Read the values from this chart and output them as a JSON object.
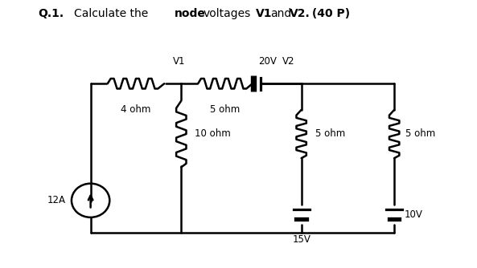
{
  "title_plain": "Q.1. Calculate the ",
  "title_bold1": "node",
  "title_after_bold1": " voltages ",
  "title_bold2": "V1",
  "title_after2": " and ",
  "title_bold3": "V2.",
  "title_bold4": "  (40 P)",
  "bg_color": "#ffffff",
  "line_color": "#000000",
  "lw": 1.8,
  "resistor_color": "#000000",
  "label_4ohm": "4 ohm",
  "label_5ohm_h": "5 ohm",
  "label_10ohm": "10 ohm",
  "label_5ohm_v1": "5 ohm",
  "label_5ohm_v2": "5 ohm",
  "label_12A": "12A",
  "label_20V": "20V",
  "label_V1": "V1",
  "label_V2": "V2",
  "label_15V": "15V",
  "label_10V": "10V"
}
